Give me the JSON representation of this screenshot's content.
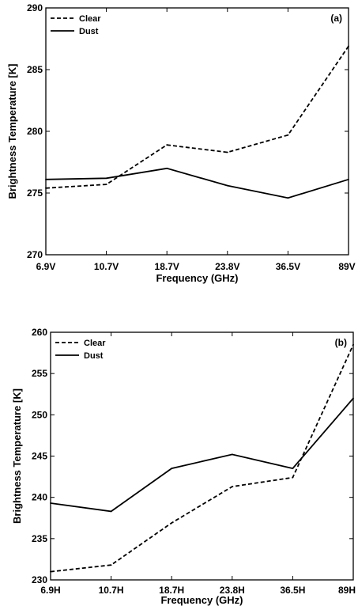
{
  "chart_data": [
    {
      "type": "line",
      "panel_label": "(a)",
      "categories": [
        "6.9V",
        "10.7V",
        "18.7V",
        "23.8V",
        "36.5V",
        "89V"
      ],
      "series": [
        {
          "name": "Clear",
          "style": "dashed",
          "values": [
            275.4,
            275.7,
            278.9,
            278.3,
            279.7,
            286.9
          ]
        },
        {
          "name": "Dust",
          "style": "solid",
          "values": [
            276.1,
            276.2,
            277.0,
            275.6,
            274.6,
            276.1
          ]
        }
      ],
      "xlabel": "Frequency (GHz)",
      "ylabel": "Brightness Temperature [K]",
      "ylim": [
        270,
        290
      ],
      "yticks": [
        "270",
        "275",
        "280",
        "285",
        "290"
      ],
      "grid": false,
      "legend_position": "top-left"
    },
    {
      "type": "line",
      "panel_label": "(b)",
      "categories": [
        "6.9H",
        "10.7H",
        "18.7H",
        "23.8H",
        "36.5H",
        "89H"
      ],
      "series": [
        {
          "name": "Clear",
          "style": "dashed",
          "values": [
            231.0,
            231.8,
            236.9,
            241.3,
            242.4,
            258.5
          ]
        },
        {
          "name": "Dust",
          "style": "solid",
          "values": [
            239.3,
            238.3,
            243.5,
            245.2,
            243.5,
            252.0
          ]
        }
      ],
      "xlabel": "Frequency (GHz)",
      "ylabel": "Brightness Temperature [K]",
      "ylim": [
        230,
        260
      ],
      "yticks": [
        "230",
        "235",
        "240",
        "245",
        "250",
        "255",
        "260"
      ],
      "grid": false,
      "legend_position": "top-left"
    }
  ]
}
